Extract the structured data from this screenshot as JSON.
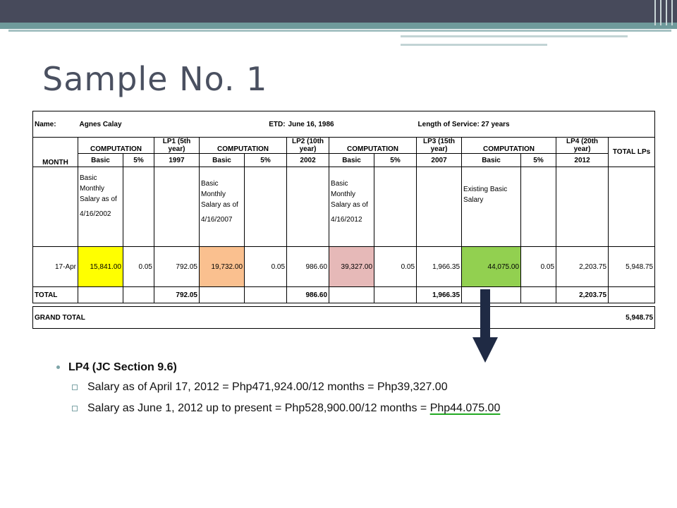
{
  "slide": {
    "title": "Sample No. 1"
  },
  "header": {
    "name_label": "Name:",
    "name_value": "Agnes Calay",
    "etd_label": "ETD:",
    "etd_value": "June 16, 1986",
    "service": "Length of Service: 27 years"
  },
  "columns": {
    "computation": "COMPUTATION",
    "lp1": "LP1 (5th year)",
    "lp2": "LP2 (10th year)",
    "lp3": "LP3 (15th year)",
    "lp4": "LP4 (20th year)",
    "total_lps": "TOTAL LPs",
    "month": "MONTH",
    "basic": "Basic",
    "pct": "5%",
    "y1997": "1997",
    "y2002": "2002",
    "y2007": "2007",
    "y2012": "2012"
  },
  "descriptions": {
    "d1": "Basic Monthly Salary as of",
    "d1_date": "4/16/2002",
    "d2": "Basic Monthly Salary as of",
    "d2_date": "4/16/2007",
    "d3": "Basic Monthly Salary as of",
    "d3_date": "4/16/2012",
    "d4": "Existing Basic Salary"
  },
  "row": {
    "month": "17-Apr",
    "basic1": "15,841.00",
    "rate1": "0.05",
    "lp1": "792.05",
    "basic2": "19,732.00",
    "rate2": "0.05",
    "lp2": "986.60",
    "basic3": "39,327.00",
    "rate3": "0.05",
    "lp3": "1,966.35",
    "basic4": "44,075.00",
    "rate4": "0.05",
    "lp4": "2,203.75",
    "total": "5,948.75"
  },
  "totals": {
    "label": "TOTAL",
    "lp1": "792.05",
    "lp2": "986.60",
    "lp3": "1,966.35",
    "lp4": "2,203.75"
  },
  "grand_total": {
    "label": "GRAND TOTAL",
    "value": "5,948.75"
  },
  "bullets": {
    "main": "LP4 (JC Section 9.6)",
    "sub1": "Salary as of April 17, 2012 = Php471,924.00/12 months = Php39,327.00",
    "sub2_prefix": "Salary as June 1, 2012 up to present = Php528,900.00/12 months = ",
    "sub2_value": "Php44.075.00"
  },
  "colors": {
    "topbar": "#474a5b",
    "accent": "#6f9a9b",
    "yellow": "#ffff00",
    "orange": "#fac08f",
    "pink": "#e6b9b8",
    "green": "#92d050",
    "arrow": "#1f2a44"
  }
}
